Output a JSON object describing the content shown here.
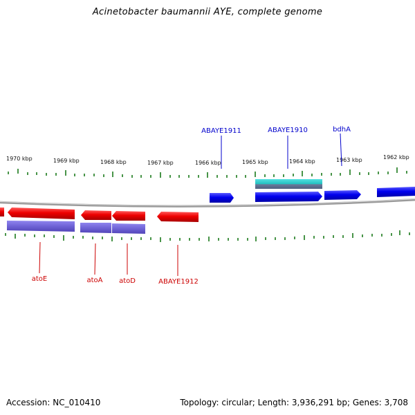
{
  "title": "Acinetobacter baumannii AYE, complete genome",
  "footer": {
    "accession": "Accession: NC_010410",
    "summary": "Topology: circular; Length: 3,936,291 bp; Genes: 3,708"
  },
  "colors": {
    "forward_gene": "#0000ee",
    "reverse_gene": "#ee0000",
    "forward_feature": "#2fc4c4",
    "reverse_feature": "#7a6fd8",
    "backbone": "#9a9a9a",
    "ticks": "#1a7a1a"
  },
  "scale_labels": [
    "1970 kbp",
    "1969 kbp",
    "1968 kbp",
    "1967 kbp",
    "1966 kbp",
    "1965 kbp",
    "1964 kbp",
    "1963 kbp",
    "1962 kbp"
  ],
  "forward_genes": [
    {
      "label": "ABAYE1911"
    },
    {
      "label": "ABAYE1910"
    },
    {
      "label": "bdhA"
    }
  ],
  "reverse_genes": [
    {
      "label": "atoE"
    },
    {
      "label": "atoA"
    },
    {
      "label": "atoD"
    },
    {
      "label": "ABAYE1912"
    }
  ]
}
